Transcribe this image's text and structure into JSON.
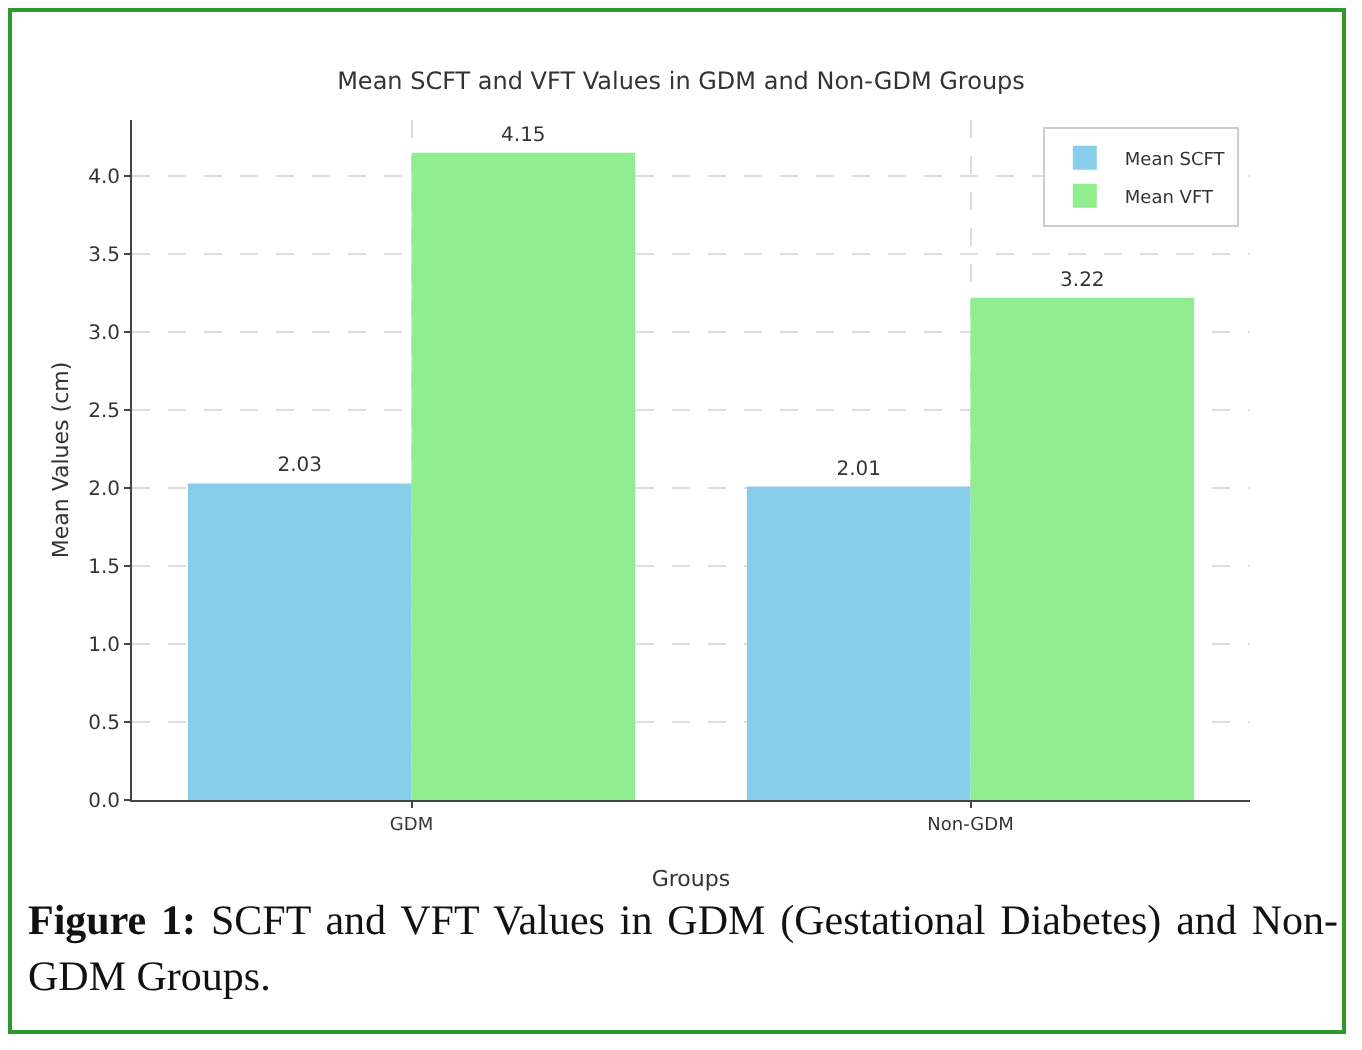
{
  "chart_data": {
    "type": "bar",
    "title": "Mean SCFT and VFT Values in GDM and Non-GDM Groups",
    "xlabel": "Groups",
    "ylabel": "Mean Values (cm)",
    "categories": [
      "GDM",
      "Non-GDM"
    ],
    "series": [
      {
        "name": "Mean SCFT",
        "color": "#87ceeb",
        "values": [
          2.03,
          2.01
        ]
      },
      {
        "name": "Mean VFT",
        "color": "#90ee90",
        "values": [
          4.15,
          3.22
        ]
      }
    ],
    "ylim": [
      0,
      4.36
    ],
    "yticks": [
      {
        "value": 0,
        "label": "0.0"
      },
      {
        "value": 0.5,
        "label": "0.5"
      },
      {
        "value": 1,
        "label": "1.0"
      },
      {
        "value": 1.5,
        "label": "1.5"
      },
      {
        "value": 2,
        "label": "2.0"
      },
      {
        "value": 2.5,
        "label": "2.5"
      },
      {
        "value": 3,
        "label": "3.0"
      },
      {
        "value": 3.5,
        "label": "3.5"
      },
      {
        "value": 4,
        "label": "4.0"
      }
    ],
    "grid": true,
    "legend": "top right",
    "data_labels": true,
    "annotations": [
      "Figure 1: SCFT and VFT Values in GDM (Gestational Diabetes) and Non- GDM Groups."
    ]
  }
}
